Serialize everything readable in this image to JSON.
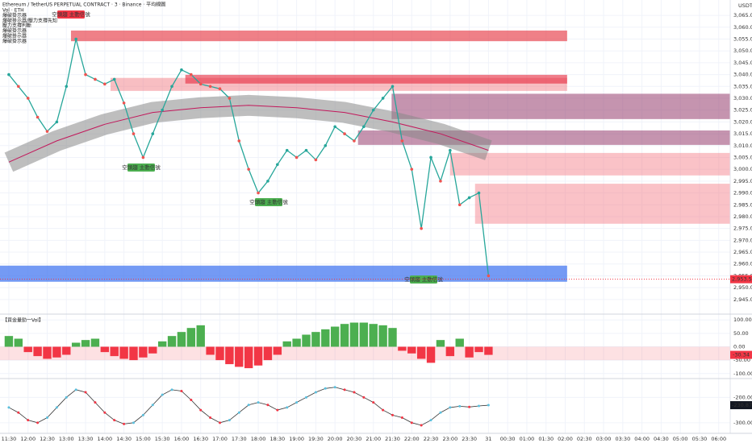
{
  "chart_data": [
    {
      "type": "line",
      "title": "Ethereum / TetherUS PERPETUAL CONTRACT · 3 · Binance · 平均線圖",
      "indicators": [
        "Vol · ETH",
        "爆破掛示器",
        "爆破掛示器/壓力支撐先知",
        "壓力支撐判斷",
        "爆破掛示器",
        "爆破掛示器",
        "爆破掛示器"
      ],
      "axis_unit": "USDT",
      "xlim": [
        -0.46,
        37.6
      ],
      "xticks": [
        {
          "value": 0,
          "label": "11:30"
        },
        {
          "value": 1,
          "label": "12:00"
        },
        {
          "value": 2,
          "label": "12:30"
        },
        {
          "value": 3,
          "label": "13:00"
        },
        {
          "value": 4,
          "label": "13:30"
        },
        {
          "value": 5,
          "label": "14:00"
        },
        {
          "value": 6,
          "label": "14:30"
        },
        {
          "value": 7,
          "label": "15:00"
        },
        {
          "value": 8,
          "label": "15:30"
        },
        {
          "value": 9,
          "label": "16:00"
        },
        {
          "value": 10,
          "label": "16:30"
        },
        {
          "value": 11,
          "label": "17:00"
        },
        {
          "value": 12,
          "label": "17:30"
        },
        {
          "value": 13,
          "label": "18:00"
        },
        {
          "value": 14,
          "label": "18:30"
        },
        {
          "value": 15,
          "label": "19:00"
        },
        {
          "value": 16,
          "label": "19:30"
        },
        {
          "value": 17,
          "label": "20:00"
        },
        {
          "value": 18,
          "label": "20:30"
        },
        {
          "value": 19,
          "label": "21:00"
        },
        {
          "value": 20,
          "label": "21:30"
        },
        {
          "value": 21,
          "label": "22:00"
        },
        {
          "value": 22,
          "label": "22:30"
        },
        {
          "value": 23,
          "label": "23:00"
        },
        {
          "value": 24,
          "label": "23:30"
        },
        {
          "value": 25,
          "label": "31"
        },
        {
          "value": 26,
          "label": "00:30"
        },
        {
          "value": 27,
          "label": "01:00"
        },
        {
          "value": 28,
          "label": "01:30"
        },
        {
          "value": 29,
          "label": "02:00"
        },
        {
          "value": 30,
          "label": "02:30"
        },
        {
          "value": 31,
          "label": "03:00"
        },
        {
          "value": 32,
          "label": "03:30"
        },
        {
          "value": 33,
          "label": "04:00"
        },
        {
          "value": 34,
          "label": "04:30"
        },
        {
          "value": 35,
          "label": "05:00"
        },
        {
          "value": 36,
          "label": "05:30"
        },
        {
          "value": 37,
          "label": "06:00"
        }
      ],
      "ylim": [
        2939.5,
        3071.5
      ],
      "yticks": [
        {
          "value": 3065,
          "label": "3,065.00"
        },
        {
          "value": 3060,
          "label": "3,060.00"
        },
        {
          "value": 3055,
          "label": "3,055.00"
        },
        {
          "value": 3050,
          "label": "3,050.00"
        },
        {
          "value": 3045,
          "label": "3,045.00"
        },
        {
          "value": 3040,
          "label": "3,040.00"
        },
        {
          "value": 3035,
          "label": "3,035.00"
        },
        {
          "value": 3030,
          "label": "3,030.00"
        },
        {
          "value": 3025,
          "label": "3,025.00"
        },
        {
          "value": 3020,
          "label": "3,020.00"
        },
        {
          "value": 3015,
          "label": "3,015.00"
        },
        {
          "value": 3010,
          "label": "3,010.00"
        },
        {
          "value": 3005,
          "label": "3,005.00"
        },
        {
          "value": 3000,
          "label": "3,000.00"
        },
        {
          "value": 2995,
          "label": "2,995.00"
        },
        {
          "value": 2990,
          "label": "2,990.00"
        },
        {
          "value": 2985,
          "label": "2,985.00"
        },
        {
          "value": 2980,
          "label": "2,980.00"
        },
        {
          "value": 2975,
          "label": "2,975.00"
        },
        {
          "value": 2970,
          "label": "2,970.00"
        },
        {
          "value": 2965,
          "label": "2,965.00"
        },
        {
          "value": 2960,
          "label": "2,960.00"
        },
        {
          "value": 2955,
          "label": "2,955.00"
        },
        {
          "value": 2950,
          "label": "2,950.00"
        },
        {
          "value": 2945,
          "label": "2,945.00"
        }
      ],
      "x": [
        0,
        0.5,
        1,
        1.5,
        2,
        2.5,
        3,
        3.5,
        4,
        4.5,
        5,
        5.5,
        6,
        6.5,
        7,
        7.5,
        8,
        8.5,
        9,
        9.5,
        10,
        10.5,
        11,
        11.5,
        12,
        12.5,
        13,
        13.5,
        14,
        14.5,
        15,
        15.5,
        16,
        16.5,
        17,
        17.5,
        18,
        18.5,
        19,
        19.5,
        20,
        20.5,
        21,
        21.5,
        22,
        22.5,
        23,
        23.5,
        24,
        24.5,
        25
      ],
      "series": [
        {
          "color": "#26a69a",
          "values": [
            3040,
            3035,
            3030,
            3022,
            3016,
            3020,
            3035,
            3055,
            3040,
            3038,
            3036,
            3038,
            3028,
            3015,
            3005,
            3015,
            3025,
            3035,
            3042,
            3040,
            3036,
            3035,
            3034,
            3030,
            3012,
            3000,
            2990,
            2995,
            3002,
            3008,
            3005,
            3008,
            3004,
            3010,
            3018,
            3015,
            3012,
            3018,
            3025,
            3030,
            3035,
            3012,
            3000,
            2975,
            3005,
            2995,
            3008,
            2985,
            2988,
            2990,
            2955
          ]
        }
      ],
      "ma": {
        "x": [
          0,
          2.5,
          5,
          7.5,
          10,
          12.5,
          15,
          17.5,
          20,
          22.5,
          25
        ],
        "values": [
          3003,
          3012,
          3019,
          3024,
          3026,
          3027,
          3026,
          3024,
          3020,
          3015,
          3008
        ],
        "color": "#888888"
      },
      "zones": [
        {
          "lo": 3054.1,
          "hi": 3058.6,
          "x0": 3.24,
          "x1": 29.1,
          "color": "rgba(230,60,70,0.65)"
        },
        {
          "lo": 3033.1,
          "hi": 3038.6,
          "x0": 5.3,
          "x1": 29.1,
          "color": "rgba(240,110,120,0.45)"
        },
        {
          "lo": 3036.2,
          "hi": 3039.9,
          "x0": 9.2,
          "x1": 29.1,
          "color": "rgba(230,40,60,0.6)"
        },
        {
          "lo": 3021.2,
          "hi": 3031.9,
          "x0": 19.95,
          "x1": 37.6,
          "color": "rgba(150,60,110,0.55)"
        },
        {
          "lo": 3010.3,
          "hi": 3016.4,
          "x0": 18.2,
          "x1": 37.6,
          "color": "rgba(150,60,110,0.55)"
        },
        {
          "lo": 2997.4,
          "hi": 3006.9,
          "x0": 23.0,
          "x1": 37.6,
          "color": "rgba(245,120,130,0.45)"
        },
        {
          "lo": 2977.0,
          "hi": 2993.9,
          "x0": 24.3,
          "x1": 37.6,
          "color": "rgba(245,120,130,0.45)"
        },
        {
          "lo": 2952.5,
          "hi": 2959.3,
          "x0": -0.46,
          "x1": 29.1,
          "color": "rgba(70,120,240,0.75)"
        }
      ],
      "annotations": [
        "空頭趨 主動信號",
        "空頭趨 主動信號",
        "空頭趨 主動信號",
        "空頭趨 主動信號"
      ],
      "price_tags": [
        {
          "value": 2953.57,
          "label": "2,953.57"
        }
      ]
    },
    {
      "type": "bar",
      "title": "【資金量勁一Vol】",
      "ylim": [
        -118.75,
        115.6
      ],
      "yticks": [
        {
          "value": 100,
          "label": "100.00"
        },
        {
          "value": 50,
          "label": "50.00"
        },
        {
          "value": 0,
          "label": "0.00"
        },
        {
          "value": -50,
          "label": "-50.00"
        },
        {
          "value": -100,
          "label": "-100.00"
        }
      ],
      "band": [
        -50,
        0
      ],
      "colors": [
        "#4caf50",
        "#f23645"
      ],
      "values": [
        40,
        30,
        -20,
        -35,
        -45,
        -40,
        -30,
        15,
        25,
        30,
        -20,
        -35,
        -45,
        -50,
        -40,
        -25,
        20,
        40,
        55,
        70,
        80,
        -30,
        -50,
        -65,
        -75,
        -80,
        -70,
        -50,
        -30,
        20,
        30,
        45,
        55,
        65,
        75,
        85,
        90,
        90,
        85,
        80,
        70,
        -15,
        -25,
        -45,
        -60,
        25,
        -35,
        30,
        -40,
        -20,
        -30.34
      ]
    },
    {
      "type": "line",
      "ylim": [
        -335.5,
        -132.3
      ],
      "yticks": [
        {
          "value": -200,
          "label": "-200.00"
        },
        {
          "value": -300,
          "label": "-300.00"
        }
      ],
      "colors": [
        "#5bc0de",
        "#f23645"
      ],
      "values": [
        -240,
        -260,
        -290,
        -300,
        -280,
        -240,
        -200,
        -170,
        -180,
        -220,
        -260,
        -290,
        -305,
        -300,
        -270,
        -230,
        -190,
        -170,
        -175,
        -210,
        -250,
        -280,
        -300,
        -290,
        -260,
        -230,
        -220,
        -230,
        -250,
        -240,
        -220,
        -200,
        -180,
        -165,
        -160,
        -170,
        -180,
        -200,
        -220,
        -250,
        -270,
        -280,
        -300,
        -310,
        -290,
        -260,
        -240,
        -235,
        -238,
        -234,
        -230.87
      ]
    }
  ]
}
